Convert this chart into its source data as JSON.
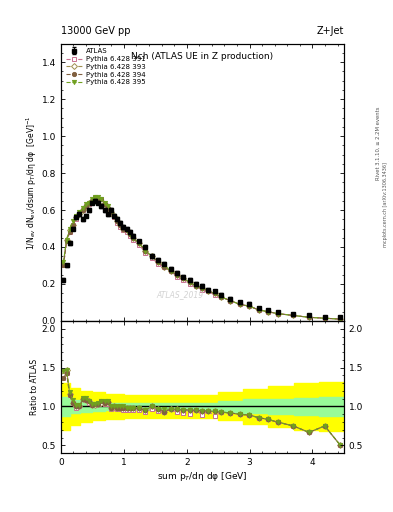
{
  "title_top": "13000 GeV pp",
  "title_right": "Z+Jet",
  "plot_title": "Nch (ATLAS UE in Z production)",
  "ylabel_main": "1/N$_{ev}$ dN$_{ev}$/dsum p$_{T}$/dη dφ  [GeV]$^{-1}$",
  "ylabel_ratio": "Ratio to ATLAS",
  "xlabel": "sum p$_{T}$/dη dφ [GeV]",
  "watermark": "ATLAS_2019",
  "right_label": "Rivet 3.1.10, ≥ 2.2M events",
  "right_label2": "mcplots.cern.ch [arXiv:1306.3436]",
  "xlim": [
    0.0,
    4.5
  ],
  "ylim_main": [
    0.0,
    1.5
  ],
  "ylim_ratio": [
    0.4,
    2.1
  ],
  "atlas_x": [
    0.04,
    0.09,
    0.14,
    0.19,
    0.245,
    0.295,
    0.345,
    0.395,
    0.445,
    0.495,
    0.545,
    0.595,
    0.645,
    0.695,
    0.745,
    0.795,
    0.845,
    0.895,
    0.945,
    0.995,
    1.045,
    1.095,
    1.145,
    1.245,
    1.345,
    1.445,
    1.545,
    1.645,
    1.745,
    1.845,
    1.945,
    2.045,
    2.145,
    2.245,
    2.345,
    2.445,
    2.545,
    2.695,
    2.845,
    2.995,
    3.145,
    3.295,
    3.445,
    3.695,
    3.945,
    4.195,
    4.445
  ],
  "atlas_y": [
    0.22,
    0.3,
    0.42,
    0.5,
    0.56,
    0.58,
    0.55,
    0.57,
    0.6,
    0.64,
    0.65,
    0.64,
    0.62,
    0.6,
    0.58,
    0.6,
    0.57,
    0.55,
    0.53,
    0.51,
    0.5,
    0.48,
    0.46,
    0.43,
    0.4,
    0.35,
    0.33,
    0.31,
    0.28,
    0.26,
    0.24,
    0.22,
    0.2,
    0.19,
    0.17,
    0.16,
    0.14,
    0.12,
    0.1,
    0.09,
    0.07,
    0.06,
    0.05,
    0.04,
    0.03,
    0.02,
    0.02
  ],
  "atlas_yerr": [
    0.01,
    0.01,
    0.01,
    0.01,
    0.01,
    0.01,
    0.01,
    0.01,
    0.01,
    0.01,
    0.01,
    0.01,
    0.01,
    0.01,
    0.01,
    0.01,
    0.01,
    0.01,
    0.01,
    0.01,
    0.01,
    0.01,
    0.01,
    0.01,
    0.01,
    0.01,
    0.01,
    0.01,
    0.01,
    0.01,
    0.01,
    0.01,
    0.01,
    0.01,
    0.01,
    0.01,
    0.01,
    0.01,
    0.01,
    0.01,
    0.005,
    0.005,
    0.005,
    0.005,
    0.005,
    0.005,
    0.005
  ],
  "mc_x": [
    0.04,
    0.09,
    0.14,
    0.19,
    0.245,
    0.295,
    0.345,
    0.395,
    0.445,
    0.495,
    0.545,
    0.595,
    0.645,
    0.695,
    0.745,
    0.795,
    0.845,
    0.895,
    0.945,
    0.995,
    1.045,
    1.095,
    1.145,
    1.245,
    1.345,
    1.445,
    1.545,
    1.645,
    1.745,
    1.845,
    1.945,
    2.045,
    2.145,
    2.245,
    2.345,
    2.445,
    2.545,
    2.695,
    2.845,
    2.995,
    3.145,
    3.295,
    3.445,
    3.695,
    3.945,
    4.195,
    4.445
  ],
  "mc391_y": [
    0.3,
    0.43,
    0.48,
    0.52,
    0.55,
    0.58,
    0.6,
    0.62,
    0.63,
    0.65,
    0.66,
    0.66,
    0.66,
    0.62,
    0.6,
    0.58,
    0.56,
    0.53,
    0.51,
    0.49,
    0.48,
    0.46,
    0.44,
    0.41,
    0.37,
    0.34,
    0.31,
    0.29,
    0.27,
    0.24,
    0.22,
    0.2,
    0.19,
    0.17,
    0.16,
    0.14,
    0.13,
    0.11,
    0.09,
    0.08,
    0.06,
    0.05,
    0.04,
    0.03,
    0.02,
    0.015,
    0.01
  ],
  "mc393_y": [
    0.31,
    0.44,
    0.49,
    0.52,
    0.56,
    0.58,
    0.6,
    0.62,
    0.64,
    0.65,
    0.66,
    0.66,
    0.65,
    0.63,
    0.61,
    0.59,
    0.57,
    0.54,
    0.52,
    0.5,
    0.49,
    0.47,
    0.45,
    0.42,
    0.38,
    0.35,
    0.32,
    0.29,
    0.27,
    0.25,
    0.23,
    0.21,
    0.19,
    0.18,
    0.16,
    0.15,
    0.13,
    0.11,
    0.09,
    0.08,
    0.06,
    0.05,
    0.04,
    0.03,
    0.02,
    0.015,
    0.01
  ],
  "mc394_y": [
    0.3,
    0.43,
    0.48,
    0.52,
    0.56,
    0.58,
    0.6,
    0.62,
    0.64,
    0.65,
    0.67,
    0.66,
    0.66,
    0.63,
    0.61,
    0.59,
    0.57,
    0.54,
    0.52,
    0.5,
    0.49,
    0.47,
    0.45,
    0.42,
    0.38,
    0.35,
    0.32,
    0.29,
    0.27,
    0.25,
    0.23,
    0.21,
    0.19,
    0.18,
    0.16,
    0.15,
    0.13,
    0.11,
    0.09,
    0.08,
    0.06,
    0.05,
    0.04,
    0.03,
    0.02,
    0.015,
    0.01
  ],
  "mc395_y": [
    0.32,
    0.44,
    0.5,
    0.54,
    0.57,
    0.59,
    0.61,
    0.63,
    0.64,
    0.66,
    0.67,
    0.67,
    0.66,
    0.64,
    0.62,
    0.6,
    0.57,
    0.55,
    0.53,
    0.51,
    0.49,
    0.47,
    0.45,
    0.42,
    0.38,
    0.35,
    0.32,
    0.3,
    0.27,
    0.25,
    0.23,
    0.21,
    0.19,
    0.18,
    0.16,
    0.15,
    0.13,
    0.11,
    0.09,
    0.08,
    0.06,
    0.05,
    0.04,
    0.03,
    0.02,
    0.015,
    0.01
  ],
  "color_391": "#c87090",
  "color_393": "#a09050",
  "color_394": "#806040",
  "color_395": "#70a020",
  "band_x_edges": [
    0.0,
    0.15,
    0.3,
    0.5,
    0.7,
    1.0,
    1.3,
    1.7,
    2.1,
    2.5,
    2.9,
    3.3,
    3.7,
    4.1,
    4.5
  ],
  "band_green_lo": [
    0.88,
    0.92,
    0.93,
    0.94,
    0.95,
    0.95,
    0.95,
    0.95,
    0.95,
    0.93,
    0.91,
    0.9,
    0.89,
    0.88,
    0.88
  ],
  "band_green_hi": [
    1.12,
    1.08,
    1.07,
    1.06,
    1.05,
    1.05,
    1.05,
    1.05,
    1.05,
    1.07,
    1.09,
    1.1,
    1.11,
    1.12,
    1.12
  ],
  "band_yellow_lo": [
    0.7,
    0.76,
    0.8,
    0.82,
    0.84,
    0.85,
    0.85,
    0.85,
    0.85,
    0.82,
    0.78,
    0.74,
    0.7,
    0.68,
    0.68
  ],
  "band_yellow_hi": [
    1.3,
    1.24,
    1.2,
    1.18,
    1.16,
    1.15,
    1.15,
    1.15,
    1.15,
    1.18,
    1.22,
    1.26,
    1.3,
    1.32,
    1.32
  ],
  "yticks_main": [
    0.0,
    0.2,
    0.4,
    0.6,
    0.8,
    1.0,
    1.2,
    1.4
  ],
  "yticks_ratio": [
    0.5,
    1.0,
    1.5,
    2.0
  ],
  "xticks": [
    0,
    1,
    2,
    3,
    4
  ]
}
